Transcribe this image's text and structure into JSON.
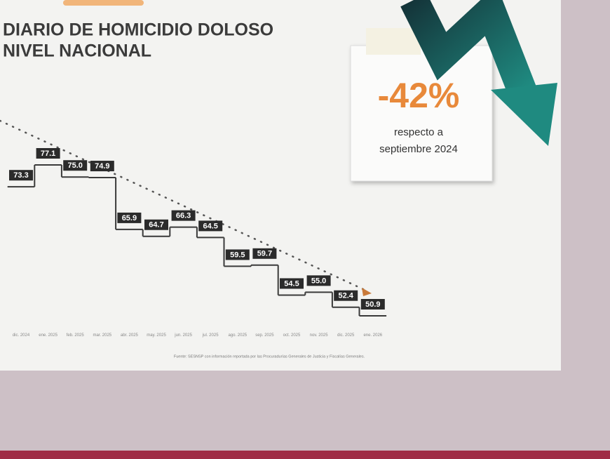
{
  "chart_data": {
    "type": "step",
    "title": "DIARIO DE HOMICIDIO DOLOSO",
    "subtitle": "NIVEL NACIONAL",
    "categories": [
      "dic. 2024",
      "ene. 2025",
      "feb. 2025",
      "mar. 2025",
      "abr. 2025",
      "may. 2025",
      "jun. 2025",
      "jul. 2025",
      "ago. 2025",
      "sep. 2025",
      "oct. 2025",
      "nov. 2025",
      "dic. 2025",
      "ene. 2026"
    ],
    "values": [
      73.3,
      77.1,
      75,
      74.9,
      65.9,
      64.7,
      66.3,
      64.5,
      59.5,
      59.7,
      54.5,
      55,
      52.4,
      50.9
    ],
    "value_labels": [
      "73.3",
      "77.1",
      "75.0",
      "74.9",
      "65.9",
      "64.7",
      "66.3",
      "64.5",
      "59.5",
      "59.7",
      "54.5",
      "55.0",
      "52.4",
      "50.9"
    ],
    "color": "#3a3a3a",
    "label_color": "#2b2b2b",
    "annotations": [
      "-42%",
      "respecto a",
      "septiembre 2024"
    ],
    "source": "Fuente: SESNSP con información reportada por las Procuradurías Generales de Justicia y Fiscalías Generales."
  }
}
